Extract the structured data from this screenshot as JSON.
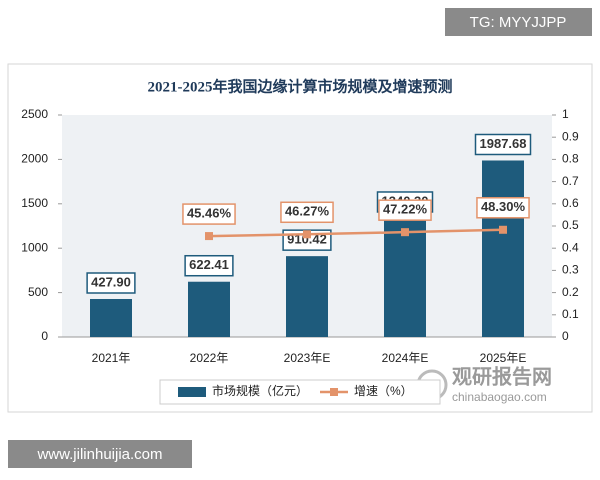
{
  "chart_data": {
    "type": "bar-line",
    "title": "2021-2025年我国边缘计算市场规模及增速预测",
    "categories": [
      "2021年",
      "2022年",
      "2023年E",
      "2024年E",
      "2025年E"
    ],
    "series": [
      {
        "name": "市场规模（亿元）",
        "type": "bar",
        "color": "#1e5b7c",
        "values": [
          427.9,
          622.41,
          910.42,
          1340.3,
          1987.68
        ],
        "value_labels": [
          "427.90",
          "622.41",
          "910.42",
          "1340.30",
          "1987.68"
        ]
      },
      {
        "name": "增速（%）",
        "type": "line",
        "axis": "y2",
        "color": "#e3936a",
        "values": [
          null,
          0.4546,
          0.4627,
          0.4722,
          0.483
        ],
        "value_labels": [
          null,
          "45.46%",
          "46.27%",
          "47.22%",
          "48.30%"
        ]
      }
    ],
    "ylim": [
      0,
      2500
    ],
    "yticks": [
      0,
      500,
      1000,
      1500,
      2000,
      2500
    ],
    "y2lim": [
      0,
      1
    ],
    "y2ticks": [
      0,
      0.1,
      0.2,
      0.3,
      0.4,
      0.5,
      0.6,
      0.7,
      0.8,
      0.9,
      1
    ],
    "legend": "bottom"
  },
  "watermarks": {
    "top": "TG: MYYJJPP",
    "bottom": "www.jilinhuijia.com",
    "logo": "观研报告网",
    "logo_url": "chinabaogao.com"
  }
}
